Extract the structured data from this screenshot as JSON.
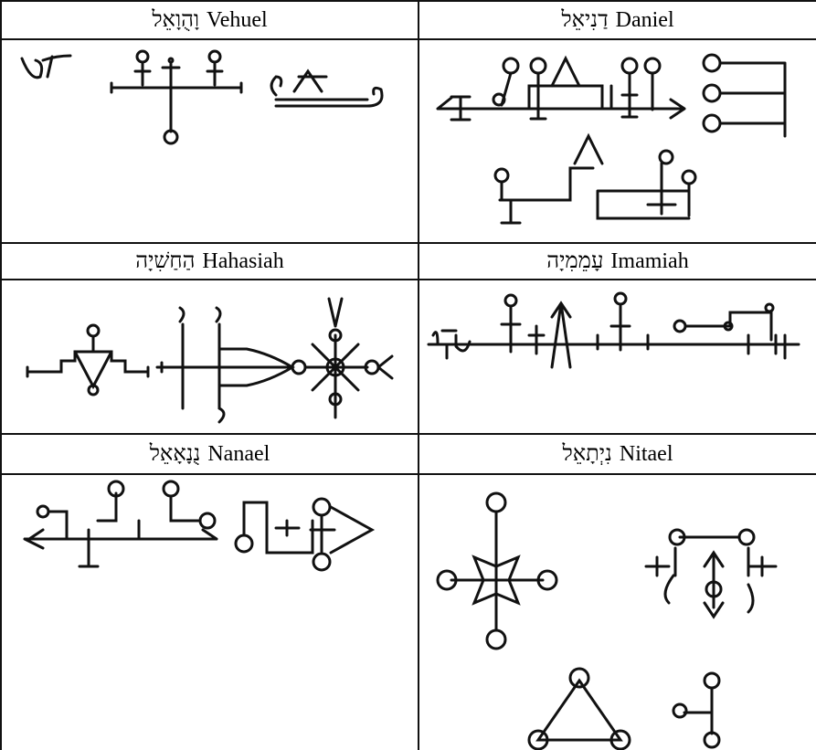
{
  "table": {
    "rows": [
      [
        {
          "latin": "Vehuel",
          "hebrew": "וָהֻוָאֵל"
        },
        {
          "latin": "Daniel",
          "hebrew": "דַנִיאֵל"
        }
      ],
      [
        {
          "latin": "Hahasiah",
          "hebrew": "הַחַשִׁיָה"
        },
        {
          "latin": "Imamiah",
          "hebrew": "עָמֵמִיָה"
        }
      ],
      [
        {
          "latin": "Nanael",
          "hebrew": "נֻנָאָאֵל"
        },
        {
          "latin": "Nitael",
          "hebrew": "נִיְתָאֵל"
        }
      ]
    ]
  }
}
